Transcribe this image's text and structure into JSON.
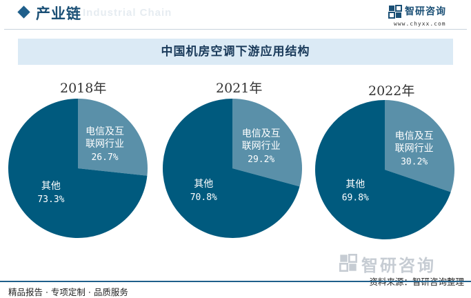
{
  "header": {
    "title": "产业链",
    "watermark_text": "Industrial Chain"
  },
  "logo": {
    "name": "智研咨询",
    "url": "www.chyxx.com"
  },
  "watermark": {
    "text": "智研咨询"
  },
  "footer": {
    "left_text": "精品报告 · 专项定制 · 品质服务",
    "right_text": "资料来源：智研咨询整理"
  },
  "colors": {
    "dark_slice": "#005a7e",
    "light_slice": "#5a90a9",
    "title_band": "#dbeaf5",
    "accent": "#1f5f8b"
  },
  "chart_data": [
    {
      "type": "pie",
      "title": "中国机房空调下游应用结构",
      "subtitle": "2018年",
      "slices": [
        {
          "label_line1": "电信及互",
          "label_line2": "联网行业",
          "value": 26.7,
          "pct_text": "26.7%"
        },
        {
          "label_line1": "其他",
          "label_line2": "",
          "value": 73.3,
          "pct_text": "73.3%"
        }
      ]
    },
    {
      "type": "pie",
      "title": "中国机房空调下游应用结构",
      "subtitle": "2021年",
      "slices": [
        {
          "label_line1": "电信及互",
          "label_line2": "联网行业",
          "value": 29.2,
          "pct_text": "29.2%"
        },
        {
          "label_line1": "其他",
          "label_line2": "",
          "value": 70.8,
          "pct_text": "70.8%"
        }
      ]
    },
    {
      "type": "pie",
      "title": "中国机房空调下游应用结构",
      "subtitle": "2022年",
      "slices": [
        {
          "label_line1": "电信及互",
          "label_line2": "联网行业",
          "value": 30.2,
          "pct_text": "30.2%"
        },
        {
          "label_line1": "其他",
          "label_line2": "",
          "value": 69.8,
          "pct_text": "69.8%"
        }
      ]
    }
  ]
}
